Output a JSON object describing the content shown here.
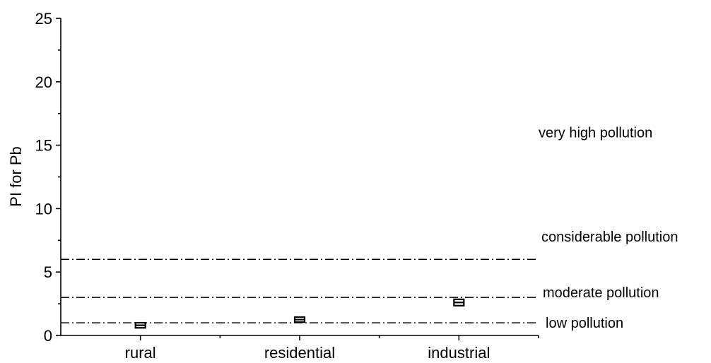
{
  "chart_data": {
    "type": "box",
    "ylabel": "PI for Pb",
    "xlabel": "",
    "categories": [
      "rural",
      "residential",
      "industrial"
    ],
    "ylim": [
      0,
      25
    ],
    "yticks": [
      0,
      5,
      10,
      15,
      20,
      25
    ],
    "boxes": [
      {
        "category": "rural",
        "q1": 0.6,
        "median": 0.8,
        "q3": 1.0
      },
      {
        "category": "residential",
        "q1": 1.05,
        "median": 1.25,
        "q3": 1.45
      },
      {
        "category": "industrial",
        "q1": 2.35,
        "median": 2.6,
        "q3": 2.85
      }
    ],
    "reference_lines": [
      {
        "y": 1,
        "style": "dash-dot"
      },
      {
        "y": 3,
        "style": "dash-dot"
      },
      {
        "y": 6,
        "style": "dash-dot"
      }
    ],
    "zone_labels": [
      {
        "text": "low pollution",
        "y": 1
      },
      {
        "text": "moderate pollution",
        "y": 3.4
      },
      {
        "text": "considerable pollution",
        "y": 7.8
      },
      {
        "text": "very high pollution",
        "y": 16.0
      }
    ],
    "grid": false,
    "legend": "none"
  }
}
